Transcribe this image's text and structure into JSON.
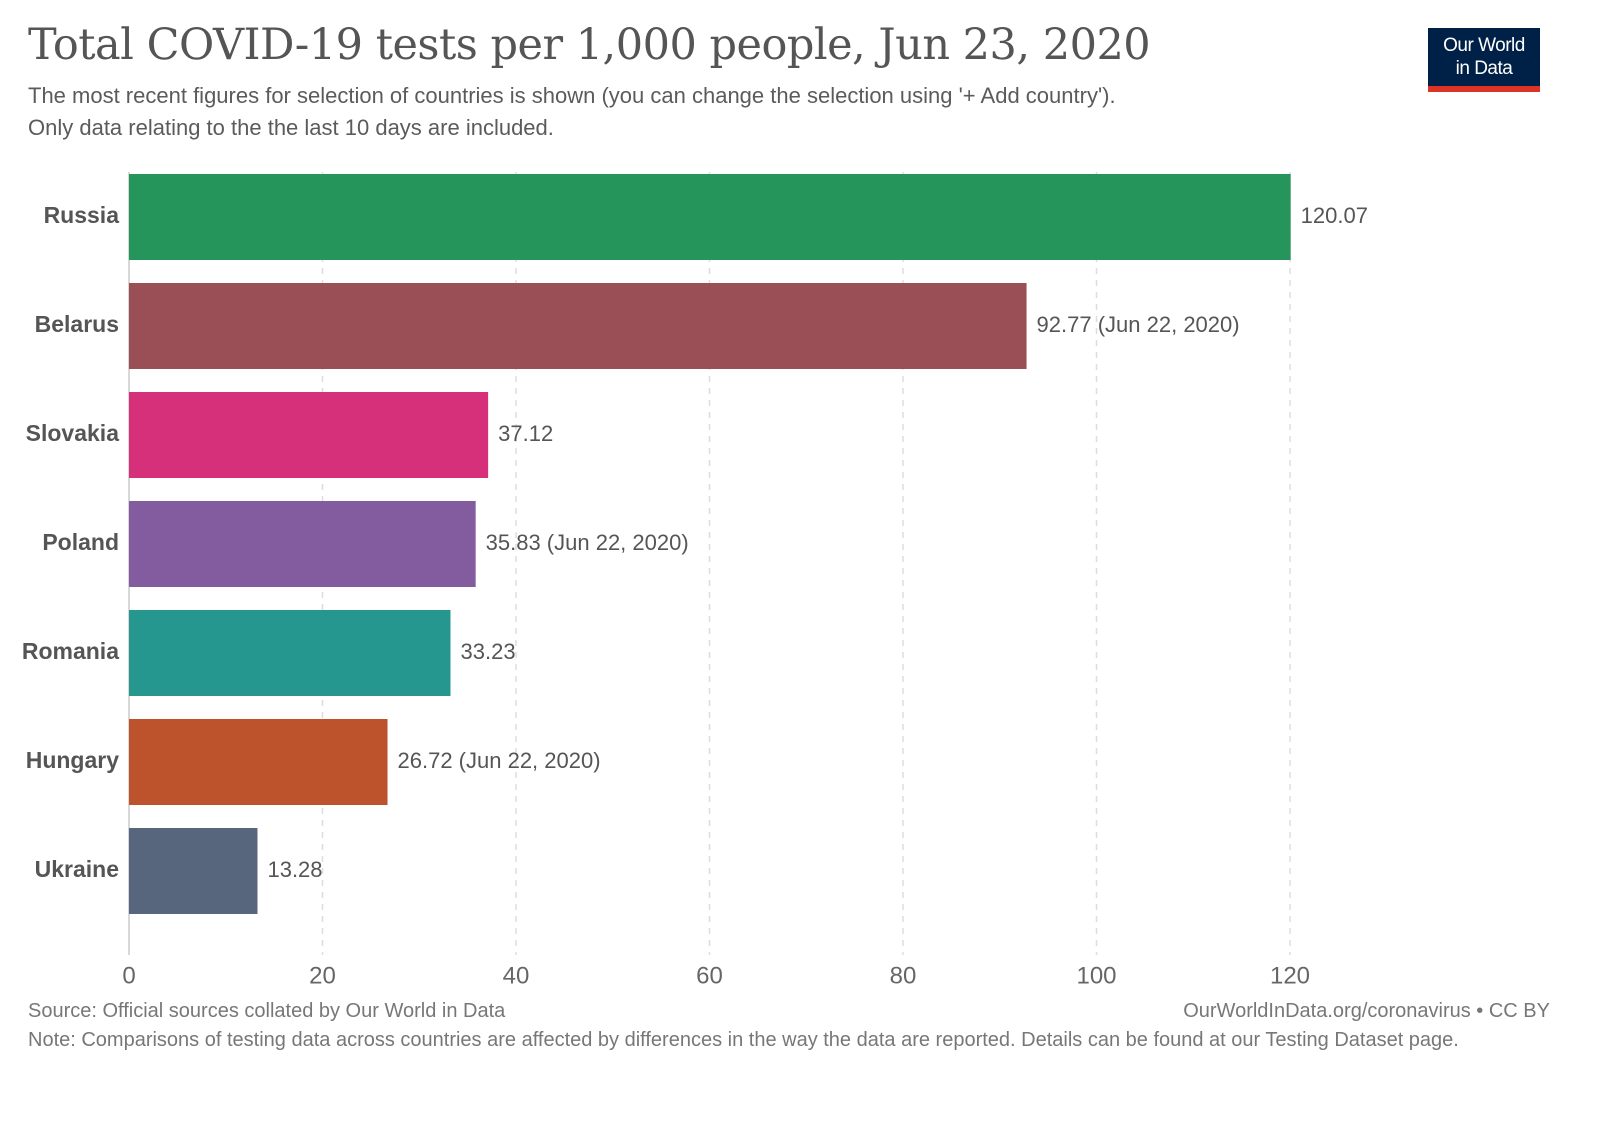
{
  "header": {
    "title": "Total COVID-19 tests per 1,000 people, Jun 23, 2020",
    "subtitle_line1": "The most recent figures for selection of countries is shown (you can change the selection using '+ Add country').",
    "subtitle_line2": "Only data relating to the the last 10 days are included.",
    "logo_line1": "Our World",
    "logo_line2": "in Data"
  },
  "footer": {
    "source": "Source: Official sources collated by Our World in Data",
    "url": "OurWorldInData.org/coronavirus • CC BY",
    "note": "Note: Comparisons of testing data across countries are affected by differences in the way the data are reported. Details can be found at our Testing Dataset page."
  },
  "colors": {
    "logo_bg": "#002147",
    "logo_accent": "#dc3326",
    "text": "#555555",
    "grid": "#dddddd"
  },
  "chart_data": {
    "type": "bar",
    "orientation": "horizontal",
    "title": "Total COVID-19 tests per 1,000 people, Jun 23, 2020",
    "xlabel": "",
    "ylabel": "",
    "xlim": [
      0,
      120
    ],
    "xticks": [
      0,
      20,
      40,
      60,
      80,
      100,
      120
    ],
    "grid": true,
    "categories": [
      "Russia",
      "Belarus",
      "Slovakia",
      "Poland",
      "Romania",
      "Hungary",
      "Ukraine"
    ],
    "values": [
      120.07,
      92.77,
      37.12,
      35.83,
      33.23,
      26.72,
      13.28
    ],
    "labels": [
      "120.07",
      "92.77 (Jun 22, 2020)",
      "37.12",
      "35.83 (Jun 22, 2020)",
      "33.23",
      "26.72 (Jun 22, 2020)",
      "13.28"
    ],
    "bar_colors": [
      "#26955b",
      "#9a4e55",
      "#d6307a",
      "#825c9f",
      "#26978f",
      "#bc532c",
      "#58667d"
    ]
  }
}
